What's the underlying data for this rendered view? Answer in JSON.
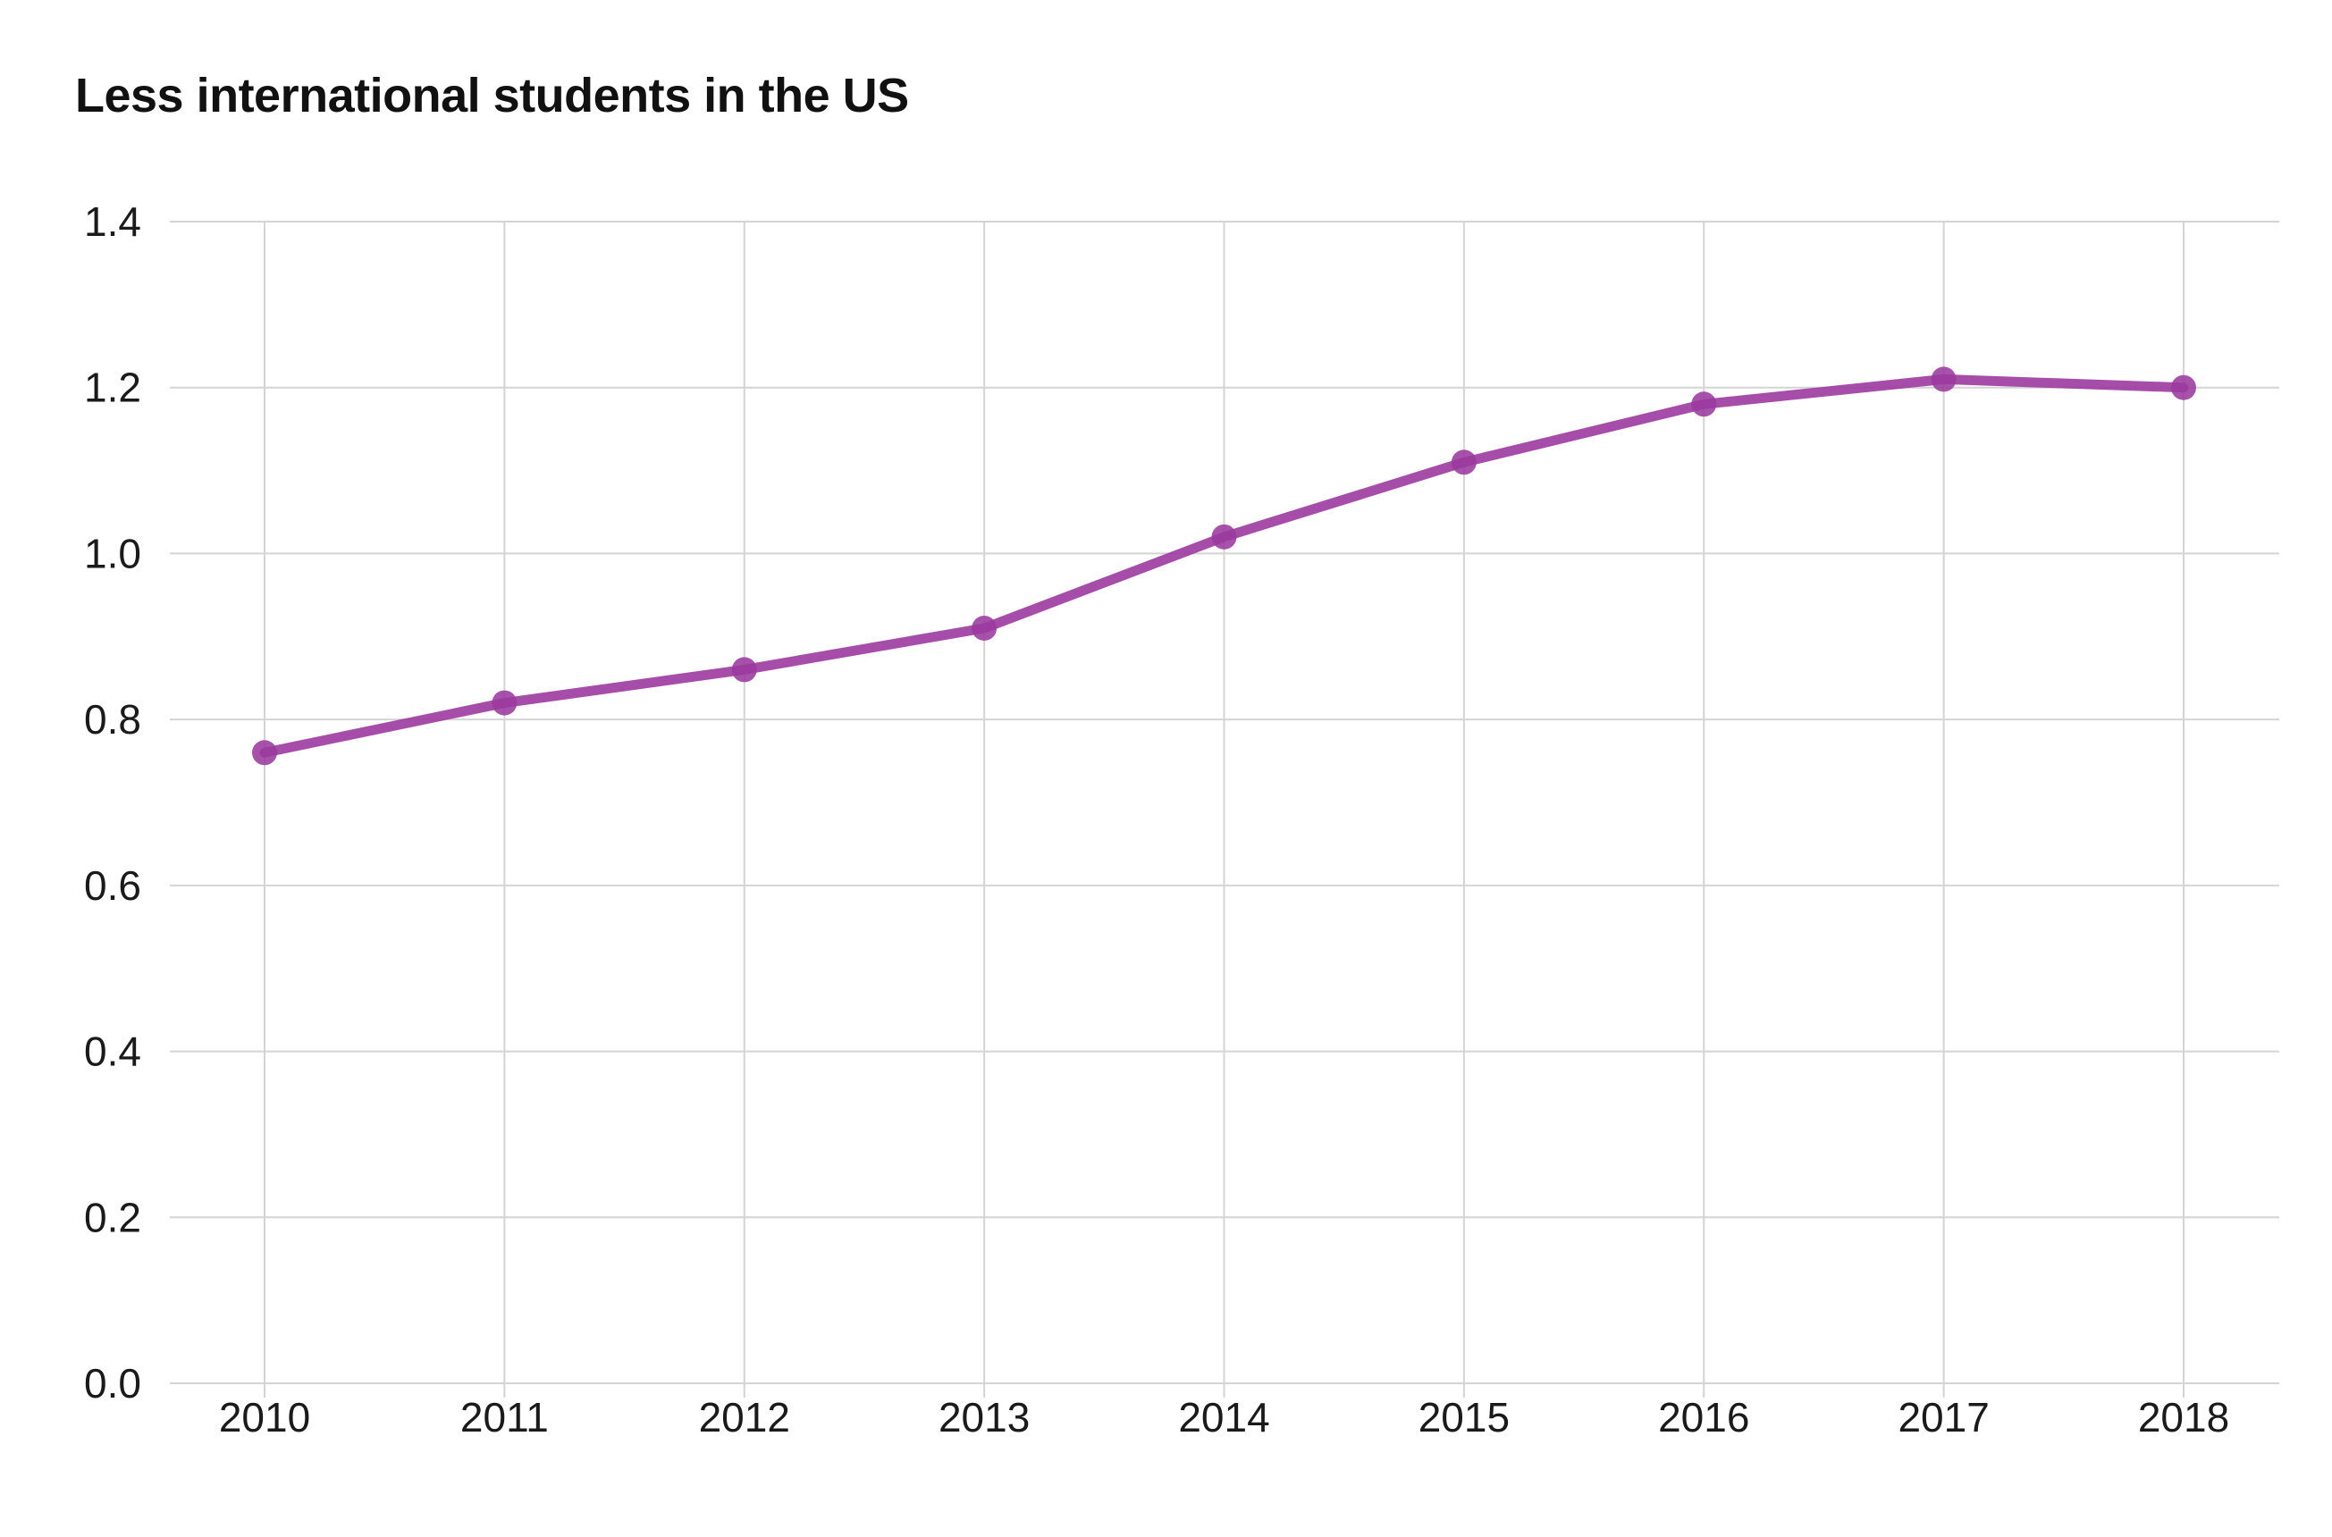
{
  "chart_data": {
    "type": "line",
    "title": "Less international students in the US",
    "xlabel": "",
    "ylabel": "",
    "x": [
      "2010",
      "2011",
      "2012",
      "2013",
      "2014",
      "2015",
      "2016",
      "2017",
      "2018"
    ],
    "series": [
      {
        "values": [
          0.76,
          0.82,
          0.86,
          0.91,
          1.02,
          1.11,
          1.18,
          1.21,
          1.2
        ],
        "color": "#9b3a9e"
      }
    ],
    "ylim": [
      0,
      1.4
    ],
    "yticks": [
      "0.0",
      "0.2",
      "0.4",
      "0.6",
      "0.8",
      "1.0",
      "1.2",
      "1.4"
    ],
    "grid": true,
    "colors": {
      "line": "#9b3a9e",
      "grid": "#d4d4d4",
      "text": "#1a1a1a"
    }
  }
}
